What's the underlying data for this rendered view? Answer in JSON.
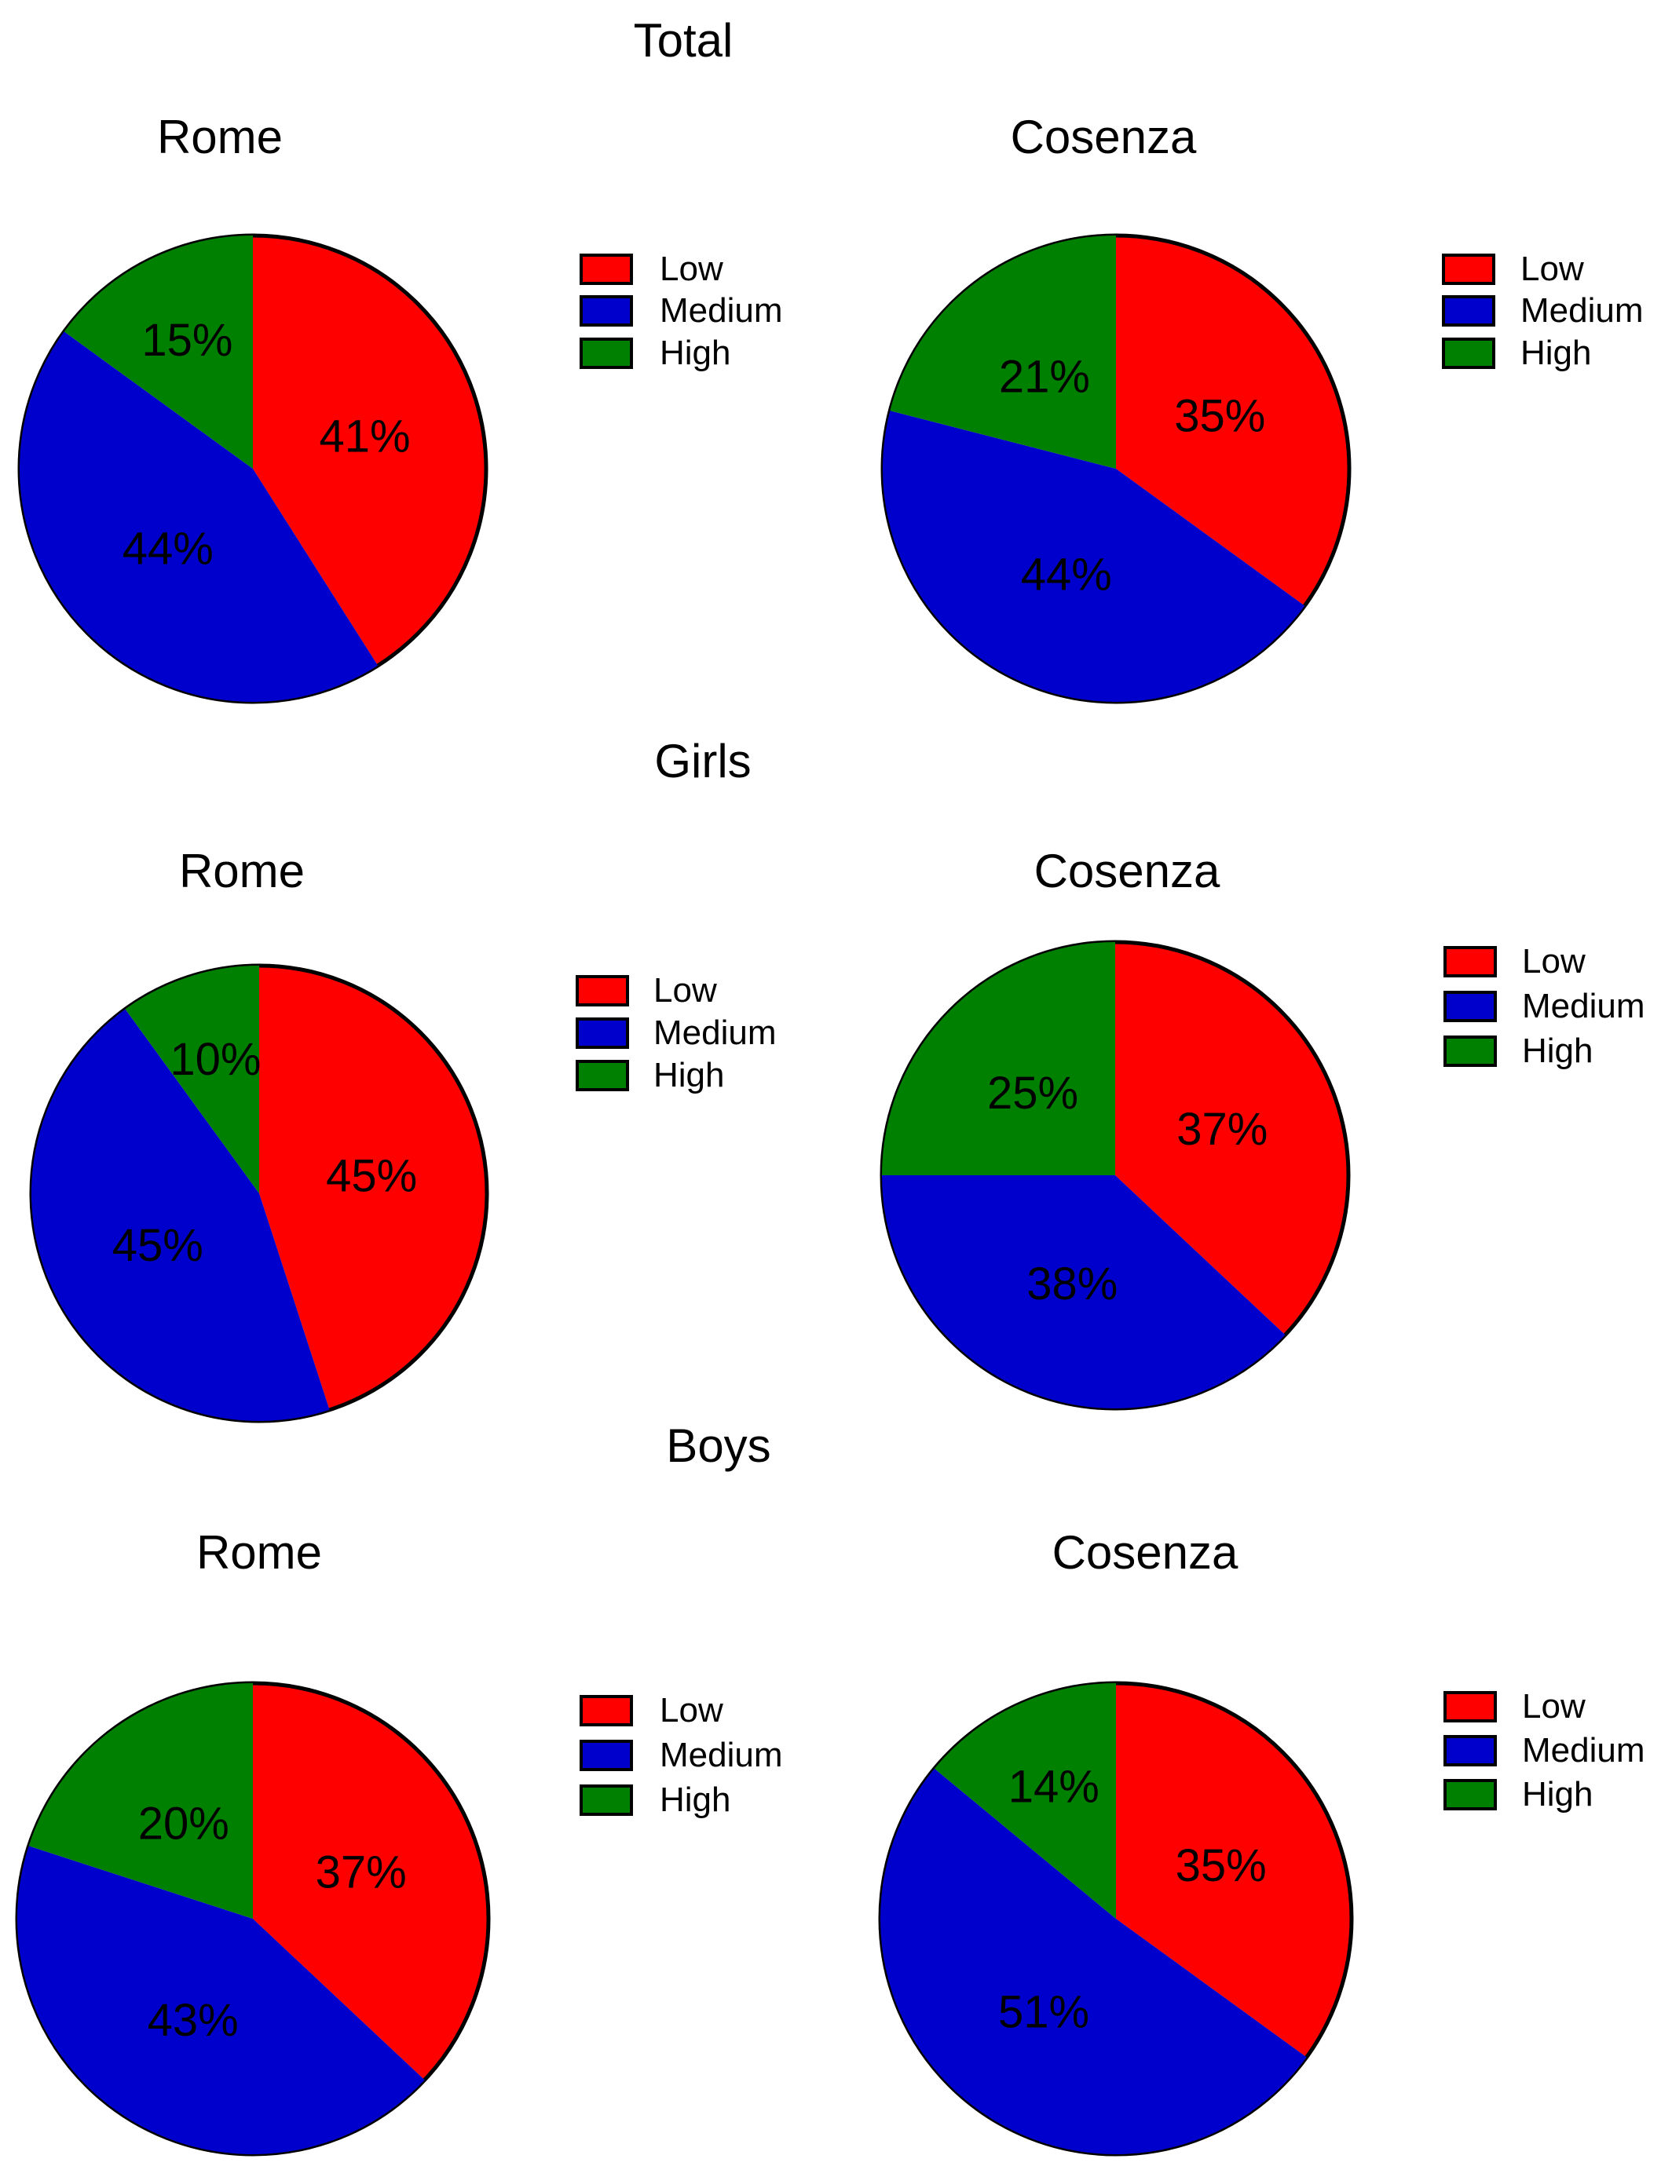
{
  "colors": {
    "low": "#ff0000",
    "medium": "#0000cc",
    "high": "#008000",
    "outline": "#000000"
  },
  "groups": [
    "Total",
    "Girls",
    "Boys"
  ],
  "legend": [
    "Low",
    "Medium",
    "High"
  ],
  "chart_data": [
    {
      "type": "pie",
      "group": "Total",
      "title": "Rome",
      "categories": [
        "Low",
        "Medium",
        "High"
      ],
      "values": [
        41,
        44,
        15
      ],
      "labels": [
        "41%",
        "44%",
        "15%"
      ],
      "legend_position": "right"
    },
    {
      "type": "pie",
      "group": "Total",
      "title": "Cosenza",
      "categories": [
        "Low",
        "Medium",
        "High"
      ],
      "values": [
        35,
        44,
        21
      ],
      "labels": [
        "35%",
        "44%",
        "21%"
      ],
      "legend_position": "right"
    },
    {
      "type": "pie",
      "group": "Girls",
      "title": "Rome",
      "categories": [
        "Low",
        "Medium",
        "High"
      ],
      "values": [
        45,
        45,
        10
      ],
      "labels": [
        "45%",
        "45%",
        "10%"
      ],
      "legend_position": "right"
    },
    {
      "type": "pie",
      "group": "Girls",
      "title": "Cosenza",
      "categories": [
        "Low",
        "Medium",
        "High"
      ],
      "values": [
        37,
        38,
        25
      ],
      "labels": [
        "37%",
        "38%",
        "25%"
      ],
      "legend_position": "right"
    },
    {
      "type": "pie",
      "group": "Boys",
      "title": "Rome",
      "categories": [
        "Low",
        "Medium",
        "High"
      ],
      "values": [
        37,
        43,
        20
      ],
      "labels": [
        "37%",
        "43%",
        "20%"
      ],
      "legend_position": "right"
    },
    {
      "type": "pie",
      "group": "Boys",
      "title": "Cosenza",
      "categories": [
        "Low",
        "Medium",
        "High"
      ],
      "values": [
        35,
        51,
        14
      ],
      "labels": [
        "35%",
        "51%",
        "14%"
      ],
      "legend_position": "right"
    }
  ]
}
